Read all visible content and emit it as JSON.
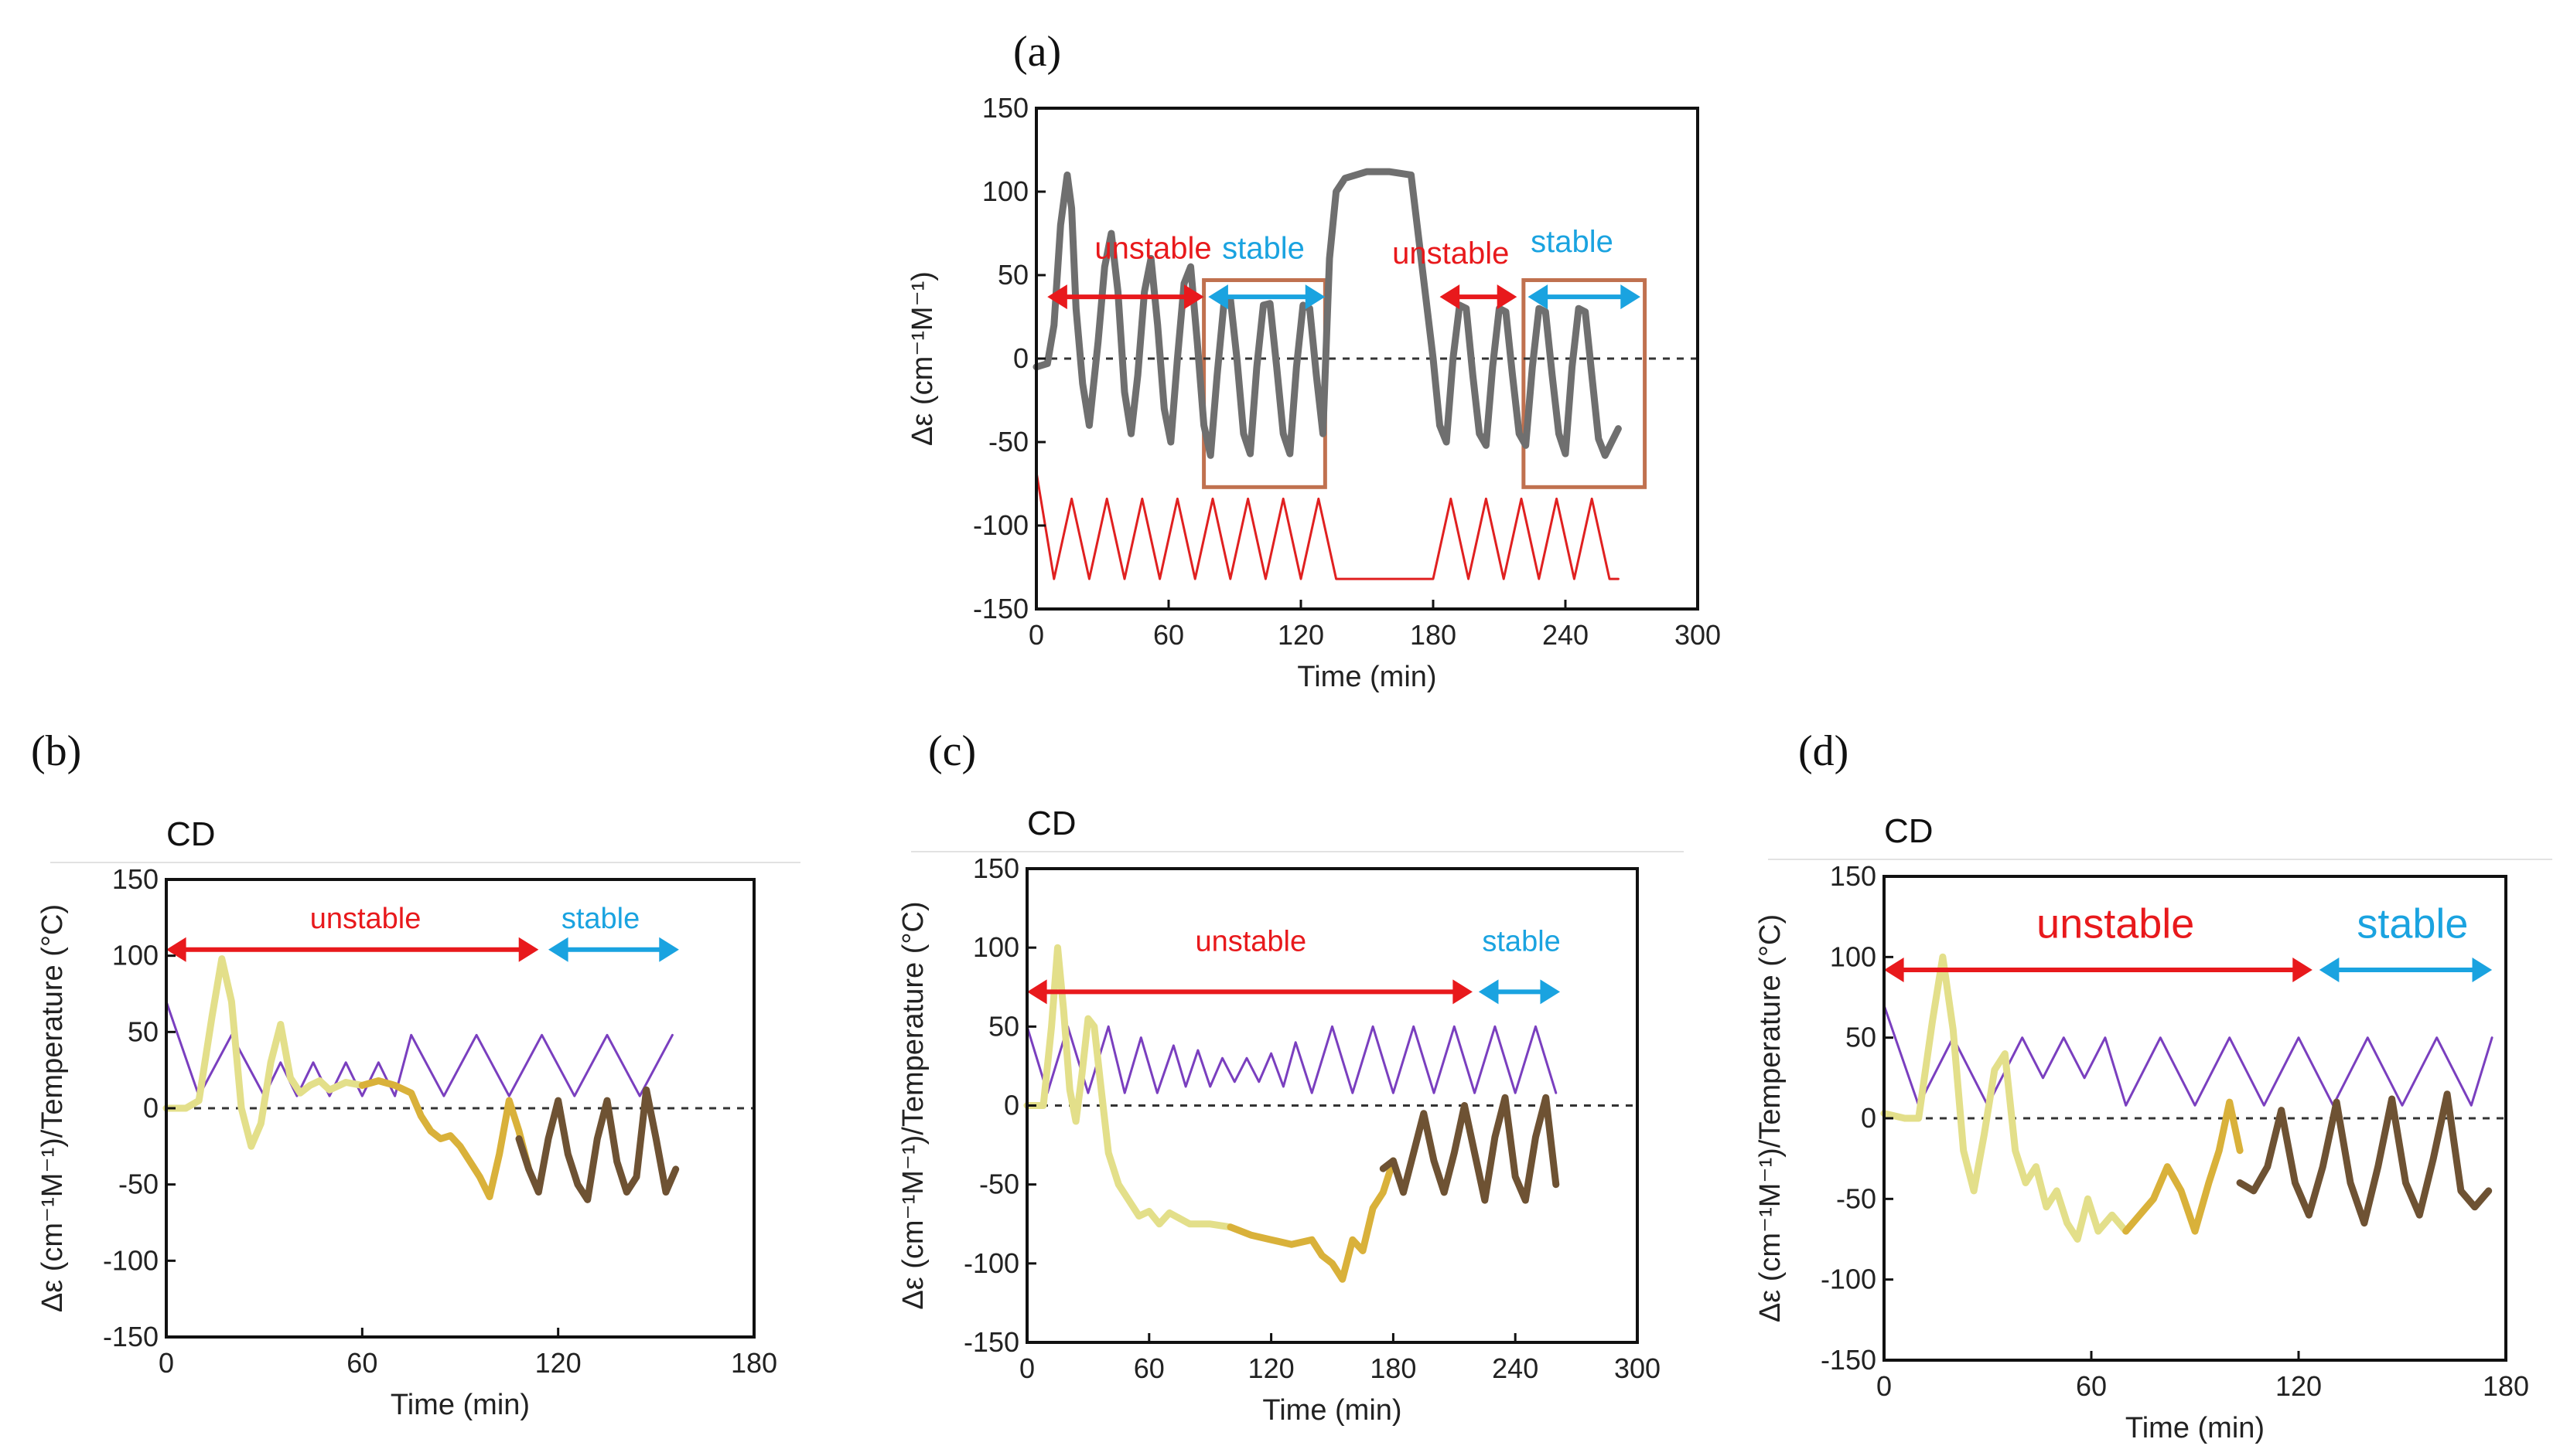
{
  "colors": {
    "trace_grey": "#6f6f6f",
    "temperature_red": "#e02020",
    "temperature_purple": "#7a3fbf",
    "unstable_red": "#e8191c",
    "stable_blue": "#1aa3e0",
    "box_orange": "#c0714f",
    "trace_light_yellow": "#e3df8a",
    "trace_gold": "#d9b13a",
    "trace_brown": "#6e5233",
    "zero_line": "#333333"
  },
  "chart_data": [
    {
      "id": "a",
      "panel_label": "(a)",
      "type": "line",
      "xlabel": "Time (min)",
      "ylabel": "Δε (cm⁻¹M⁻¹)",
      "xlim": [
        0,
        300
      ],
      "ylim": [
        -150,
        150
      ],
      "xticks": [
        "0",
        "60",
        "120",
        "180",
        "240",
        "300"
      ],
      "yticks": [
        "150",
        "100",
        "50",
        "0",
        "-50",
        "-100",
        "-150"
      ],
      "zero_line": "dashed",
      "annotations": [
        {
          "text": "unstable",
          "x": 53,
          "y": 60,
          "color": "unstable_red"
        },
        {
          "text": "stable",
          "x": 103,
          "y": 60,
          "color": "stable_blue"
        },
        {
          "text": "unstable",
          "x": 188,
          "y": 57,
          "color": "unstable_red"
        },
        {
          "text": "stable",
          "x": 243,
          "y": 64,
          "color": "stable_blue"
        }
      ],
      "arrows": [
        {
          "x1": 5,
          "x2": 76,
          "y": 37,
          "color": "unstable_red"
        },
        {
          "x1": 78,
          "x2": 131,
          "y": 37,
          "color": "stable_blue"
        },
        {
          "x1": 183,
          "x2": 218,
          "y": 37,
          "color": "unstable_red"
        },
        {
          "x1": 223,
          "x2": 274,
          "y": 37,
          "color": "stable_blue"
        }
      ],
      "boxes": [
        {
          "x0": 76,
          "x1": 131,
          "y0": -77,
          "y1": 47
        },
        {
          "x0": 221,
          "x1": 276,
          "y0": -77,
          "y1": 47
        }
      ],
      "series": [
        {
          "name": "CD",
          "color": "trace_grey",
          "x": [
            0,
            5,
            8,
            11,
            14,
            16,
            18,
            21,
            24,
            28,
            31,
            34,
            37,
            40,
            43,
            46,
            49,
            52,
            55,
            58,
            61,
            64,
            67,
            70,
            73,
            76,
            79,
            82,
            85,
            88,
            91,
            94,
            97,
            100,
            103,
            106,
            109,
            112,
            115,
            118,
            121,
            124,
            127,
            130,
            133,
            136,
            140,
            150,
            160,
            170,
            180,
            183,
            186,
            189,
            192,
            195,
            198,
            201,
            204,
            207,
            210,
            213,
            216,
            219,
            222,
            225,
            228,
            231,
            234,
            237,
            240,
            243,
            246,
            249,
            252,
            255,
            258,
            261,
            264
          ],
          "y": [
            -5,
            -3,
            20,
            80,
            110,
            90,
            30,
            -15,
            -40,
            10,
            55,
            75,
            40,
            -20,
            -45,
            -10,
            40,
            60,
            20,
            -30,
            -50,
            0,
            45,
            55,
            10,
            -40,
            -58,
            -10,
            32,
            36,
            0,
            -45,
            -57,
            -5,
            32,
            33,
            -5,
            -45,
            -57,
            -5,
            32,
            30,
            -10,
            -45,
            60,
            100,
            108,
            112,
            112,
            110,
            0,
            -40,
            -50,
            0,
            32,
            30,
            -10,
            -45,
            -52,
            -5,
            30,
            28,
            -10,
            -45,
            -52,
            -5,
            30,
            28,
            -10,
            -45,
            -57,
            -5,
            30,
            28,
            -10,
            -48,
            -58,
            -50,
            -42
          ]
        },
        {
          "name": "Temperature",
          "color": "temperature_red",
          "x": [
            0,
            8,
            16,
            24,
            32,
            40,
            48,
            56,
            64,
            72,
            80,
            88,
            96,
            104,
            112,
            120,
            128,
            136,
            180,
            188,
            196,
            204,
            212,
            220,
            228,
            236,
            244,
            252,
            260,
            264
          ],
          "y": [
            -68,
            -132,
            -84,
            -132,
            -84,
            -132,
            -84,
            -132,
            -84,
            -132,
            -84,
            -132,
            -84,
            -132,
            -84,
            -132,
            -84,
            -132,
            -132,
            -84,
            -132,
            -84,
            -132,
            -84,
            -132,
            -84,
            -132,
            -84,
            -132,
            -132
          ]
        }
      ]
    },
    {
      "id": "b",
      "panel_label": "(b)",
      "title": "CD",
      "type": "line",
      "xlabel": "Time (min)",
      "ylabel": "Δε (cm⁻¹M⁻¹)/Temperature (°C)",
      "xlim": [
        0,
        180
      ],
      "ylim": [
        -150,
        150
      ],
      "xticks": [
        "0",
        "60",
        "120",
        "180"
      ],
      "yticks": [
        "150",
        "100",
        "50",
        "0",
        "-50",
        "-100",
        "-150"
      ],
      "zero_line": "dashed",
      "annotations": [
        {
          "text": "unstable",
          "x": 61,
          "y": 118,
          "color": "unstable_red"
        },
        {
          "text": "stable",
          "x": 133,
          "y": 118,
          "color": "stable_blue"
        }
      ],
      "arrows": [
        {
          "x1": 0,
          "x2": 114,
          "y": 104,
          "color": "unstable_red"
        },
        {
          "x1": 117,
          "x2": 157,
          "y": 104,
          "color": "stable_blue"
        }
      ],
      "series": [
        {
          "name": "Temperature",
          "color": "temperature_purple",
          "x": [
            0,
            10,
            20,
            30,
            35,
            40,
            45,
            50,
            55,
            60,
            65,
            70,
            75,
            85,
            95,
            105,
            115,
            125,
            135,
            145,
            155
          ],
          "y": [
            70,
            8,
            48,
            8,
            30,
            8,
            30,
            8,
            30,
            8,
            30,
            8,
            48,
            8,
            48,
            8,
            48,
            8,
            48,
            8,
            48
          ]
        },
        {
          "name": "CD phase 1",
          "color": "trace_light_yellow",
          "x": [
            0,
            6,
            10,
            14,
            17,
            20,
            23,
            26,
            29,
            32,
            35,
            38,
            41,
            44,
            47,
            50,
            55,
            60
          ],
          "y": [
            0,
            0,
            5,
            60,
            98,
            70,
            0,
            -25,
            -10,
            30,
            55,
            20,
            10,
            15,
            18,
            12,
            17,
            15
          ]
        },
        {
          "name": "CD phase 2",
          "color": "trace_gold",
          "x": [
            60,
            65,
            70,
            75,
            78,
            81,
            84,
            87,
            90,
            93,
            96,
            99,
            102,
            105,
            108,
            111
          ],
          "y": [
            15,
            18,
            15,
            10,
            -5,
            -15,
            -20,
            -18,
            -25,
            -35,
            -45,
            -58,
            -30,
            5,
            -15,
            -40
          ]
        },
        {
          "name": "CD phase 3",
          "color": "trace_brown",
          "x": [
            108,
            111,
            114,
            117,
            120,
            123,
            126,
            129,
            132,
            135,
            138,
            141,
            144,
            147,
            150,
            153,
            156
          ],
          "y": [
            -20,
            -40,
            -55,
            -20,
            5,
            -30,
            -50,
            -60,
            -20,
            5,
            -35,
            -55,
            -45,
            12,
            -20,
            -55,
            -40
          ]
        }
      ]
    },
    {
      "id": "c",
      "panel_label": "(c)",
      "title": "CD",
      "type": "line",
      "xlabel": "Time (min)",
      "ylabel": "Δε (cm⁻¹M⁻¹)/Temperature (°C)",
      "xlim": [
        0,
        300
      ],
      "ylim": [
        -150,
        150
      ],
      "xticks": [
        "0",
        "60",
        "120",
        "180",
        "240",
        "300"
      ],
      "yticks": [
        "150",
        "100",
        "50",
        "0",
        "-50",
        "-100",
        "-150"
      ],
      "zero_line": "dashed",
      "annotations": [
        {
          "text": "unstable",
          "x": 110,
          "y": 98,
          "color": "unstable_red"
        },
        {
          "text": "stable",
          "x": 243,
          "y": 98,
          "color": "stable_blue"
        }
      ],
      "arrows": [
        {
          "x1": 0,
          "x2": 219,
          "y": 72,
          "color": "unstable_red"
        },
        {
          "x1": 222,
          "x2": 262,
          "y": 72,
          "color": "stable_blue"
        }
      ],
      "series": [
        {
          "name": "Temperature",
          "color": "temperature_purple",
          "x": [
            0,
            10,
            20,
            30,
            40,
            48,
            56,
            64,
            72,
            78,
            84,
            90,
            96,
            102,
            108,
            114,
            120,
            126,
            132,
            140,
            150,
            160,
            170,
            180,
            190,
            200,
            210,
            220,
            230,
            240,
            250,
            260
          ],
          "y": [
            50,
            8,
            50,
            8,
            50,
            8,
            43,
            8,
            38,
            12,
            35,
            12,
            30,
            15,
            30,
            15,
            33,
            12,
            40,
            8,
            50,
            8,
            50,
            8,
            50,
            8,
            50,
            8,
            50,
            8,
            50,
            8
          ]
        },
        {
          "name": "CD phase 1",
          "color": "trace_light_yellow",
          "x": [
            0,
            8,
            12,
            15,
            18,
            21,
            24,
            27,
            30,
            33,
            36,
            40,
            45,
            50,
            55,
            60,
            65,
            70,
            80,
            90,
            100
          ],
          "y": [
            0,
            0,
            50,
            100,
            60,
            10,
            -10,
            20,
            55,
            50,
            15,
            -30,
            -50,
            -60,
            -70,
            -67,
            -75,
            -68,
            -75,
            -75,
            -77
          ]
        },
        {
          "name": "CD phase 2",
          "color": "trace_gold",
          "x": [
            100,
            110,
            120,
            130,
            140,
            145,
            150,
            155,
            160,
            165,
            170,
            175,
            180
          ],
          "y": [
            -77,
            -82,
            -85,
            -88,
            -85,
            -95,
            -100,
            -110,
            -85,
            -92,
            -65,
            -55,
            -35
          ]
        },
        {
          "name": "CD phase 3",
          "color": "trace_brown",
          "x": [
            175,
            180,
            185,
            190,
            195,
            200,
            205,
            210,
            215,
            220,
            225,
            230,
            235,
            240,
            245,
            250,
            255,
            260
          ],
          "y": [
            -40,
            -35,
            -55,
            -30,
            -5,
            -35,
            -55,
            -30,
            0,
            -30,
            -60,
            -20,
            5,
            -45,
            -60,
            -20,
            5,
            -50
          ]
        }
      ]
    },
    {
      "id": "d",
      "panel_label": "(d)",
      "title": "CD",
      "type": "line",
      "xlabel": "Time (min)",
      "ylabel": "Δε (cm⁻¹M⁻¹)/Temperature (°C)",
      "xlim": [
        0,
        180
      ],
      "ylim": [
        -150,
        150
      ],
      "xticks": [
        "0",
        "60",
        "120",
        "180"
      ],
      "yticks": [
        "150",
        "100",
        "50",
        "0",
        "-50",
        "-100",
        "-150"
      ],
      "zero_line": "dashed",
      "annotations": [
        {
          "text": "unstable",
          "x": 67,
          "y": 112,
          "color": "unstable_red"
        },
        {
          "text": "stable",
          "x": 153,
          "y": 112,
          "color": "stable_blue"
        }
      ],
      "arrows": [
        {
          "x1": 0,
          "x2": 124,
          "y": 92,
          "color": "unstable_red"
        },
        {
          "x1": 126,
          "x2": 176,
          "y": 92,
          "color": "stable_blue"
        }
      ],
      "series": [
        {
          "name": "Temperature",
          "color": "temperature_purple",
          "x": [
            0,
            10,
            20,
            30,
            40,
            46,
            52,
            58,
            64,
            70,
            80,
            90,
            100,
            110,
            120,
            130,
            140,
            150,
            160,
            170,
            176
          ],
          "y": [
            70,
            8,
            50,
            8,
            50,
            25,
            50,
            25,
            50,
            8,
            50,
            8,
            50,
            8,
            50,
            8,
            50,
            8,
            50,
            8,
            50
          ]
        },
        {
          "name": "CD phase 1",
          "color": "trace_light_yellow",
          "x": [
            0,
            6,
            10,
            14,
            17,
            20,
            23,
            26,
            29,
            32,
            35,
            38,
            41,
            44,
            47,
            50,
            53,
            56,
            59,
            62,
            66,
            70
          ],
          "y": [
            3,
            0,
            0,
            60,
            100,
            55,
            -20,
            -45,
            -10,
            30,
            40,
            -20,
            -40,
            -30,
            -55,
            -45,
            -65,
            -75,
            -50,
            -70,
            -60,
            -70
          ]
        },
        {
          "name": "CD phase 2",
          "color": "trace_gold",
          "x": [
            70,
            74,
            78,
            82,
            86,
            90,
            94,
            97,
            100,
            103
          ],
          "y": [
            -70,
            -60,
            -50,
            -30,
            -45,
            -70,
            -40,
            -20,
            10,
            -20
          ]
        },
        {
          "name": "CD phase 3",
          "color": "trace_brown",
          "x": [
            103,
            107,
            111,
            115,
            119,
            123,
            127,
            131,
            135,
            139,
            143,
            147,
            151,
            155,
            159,
            163,
            167,
            171,
            175
          ],
          "y": [
            -40,
            -45,
            -30,
            5,
            -40,
            -60,
            -30,
            10,
            -40,
            -65,
            -30,
            12,
            -40,
            -60,
            -25,
            15,
            -45,
            -55,
            -45
          ]
        }
      ]
    }
  ]
}
